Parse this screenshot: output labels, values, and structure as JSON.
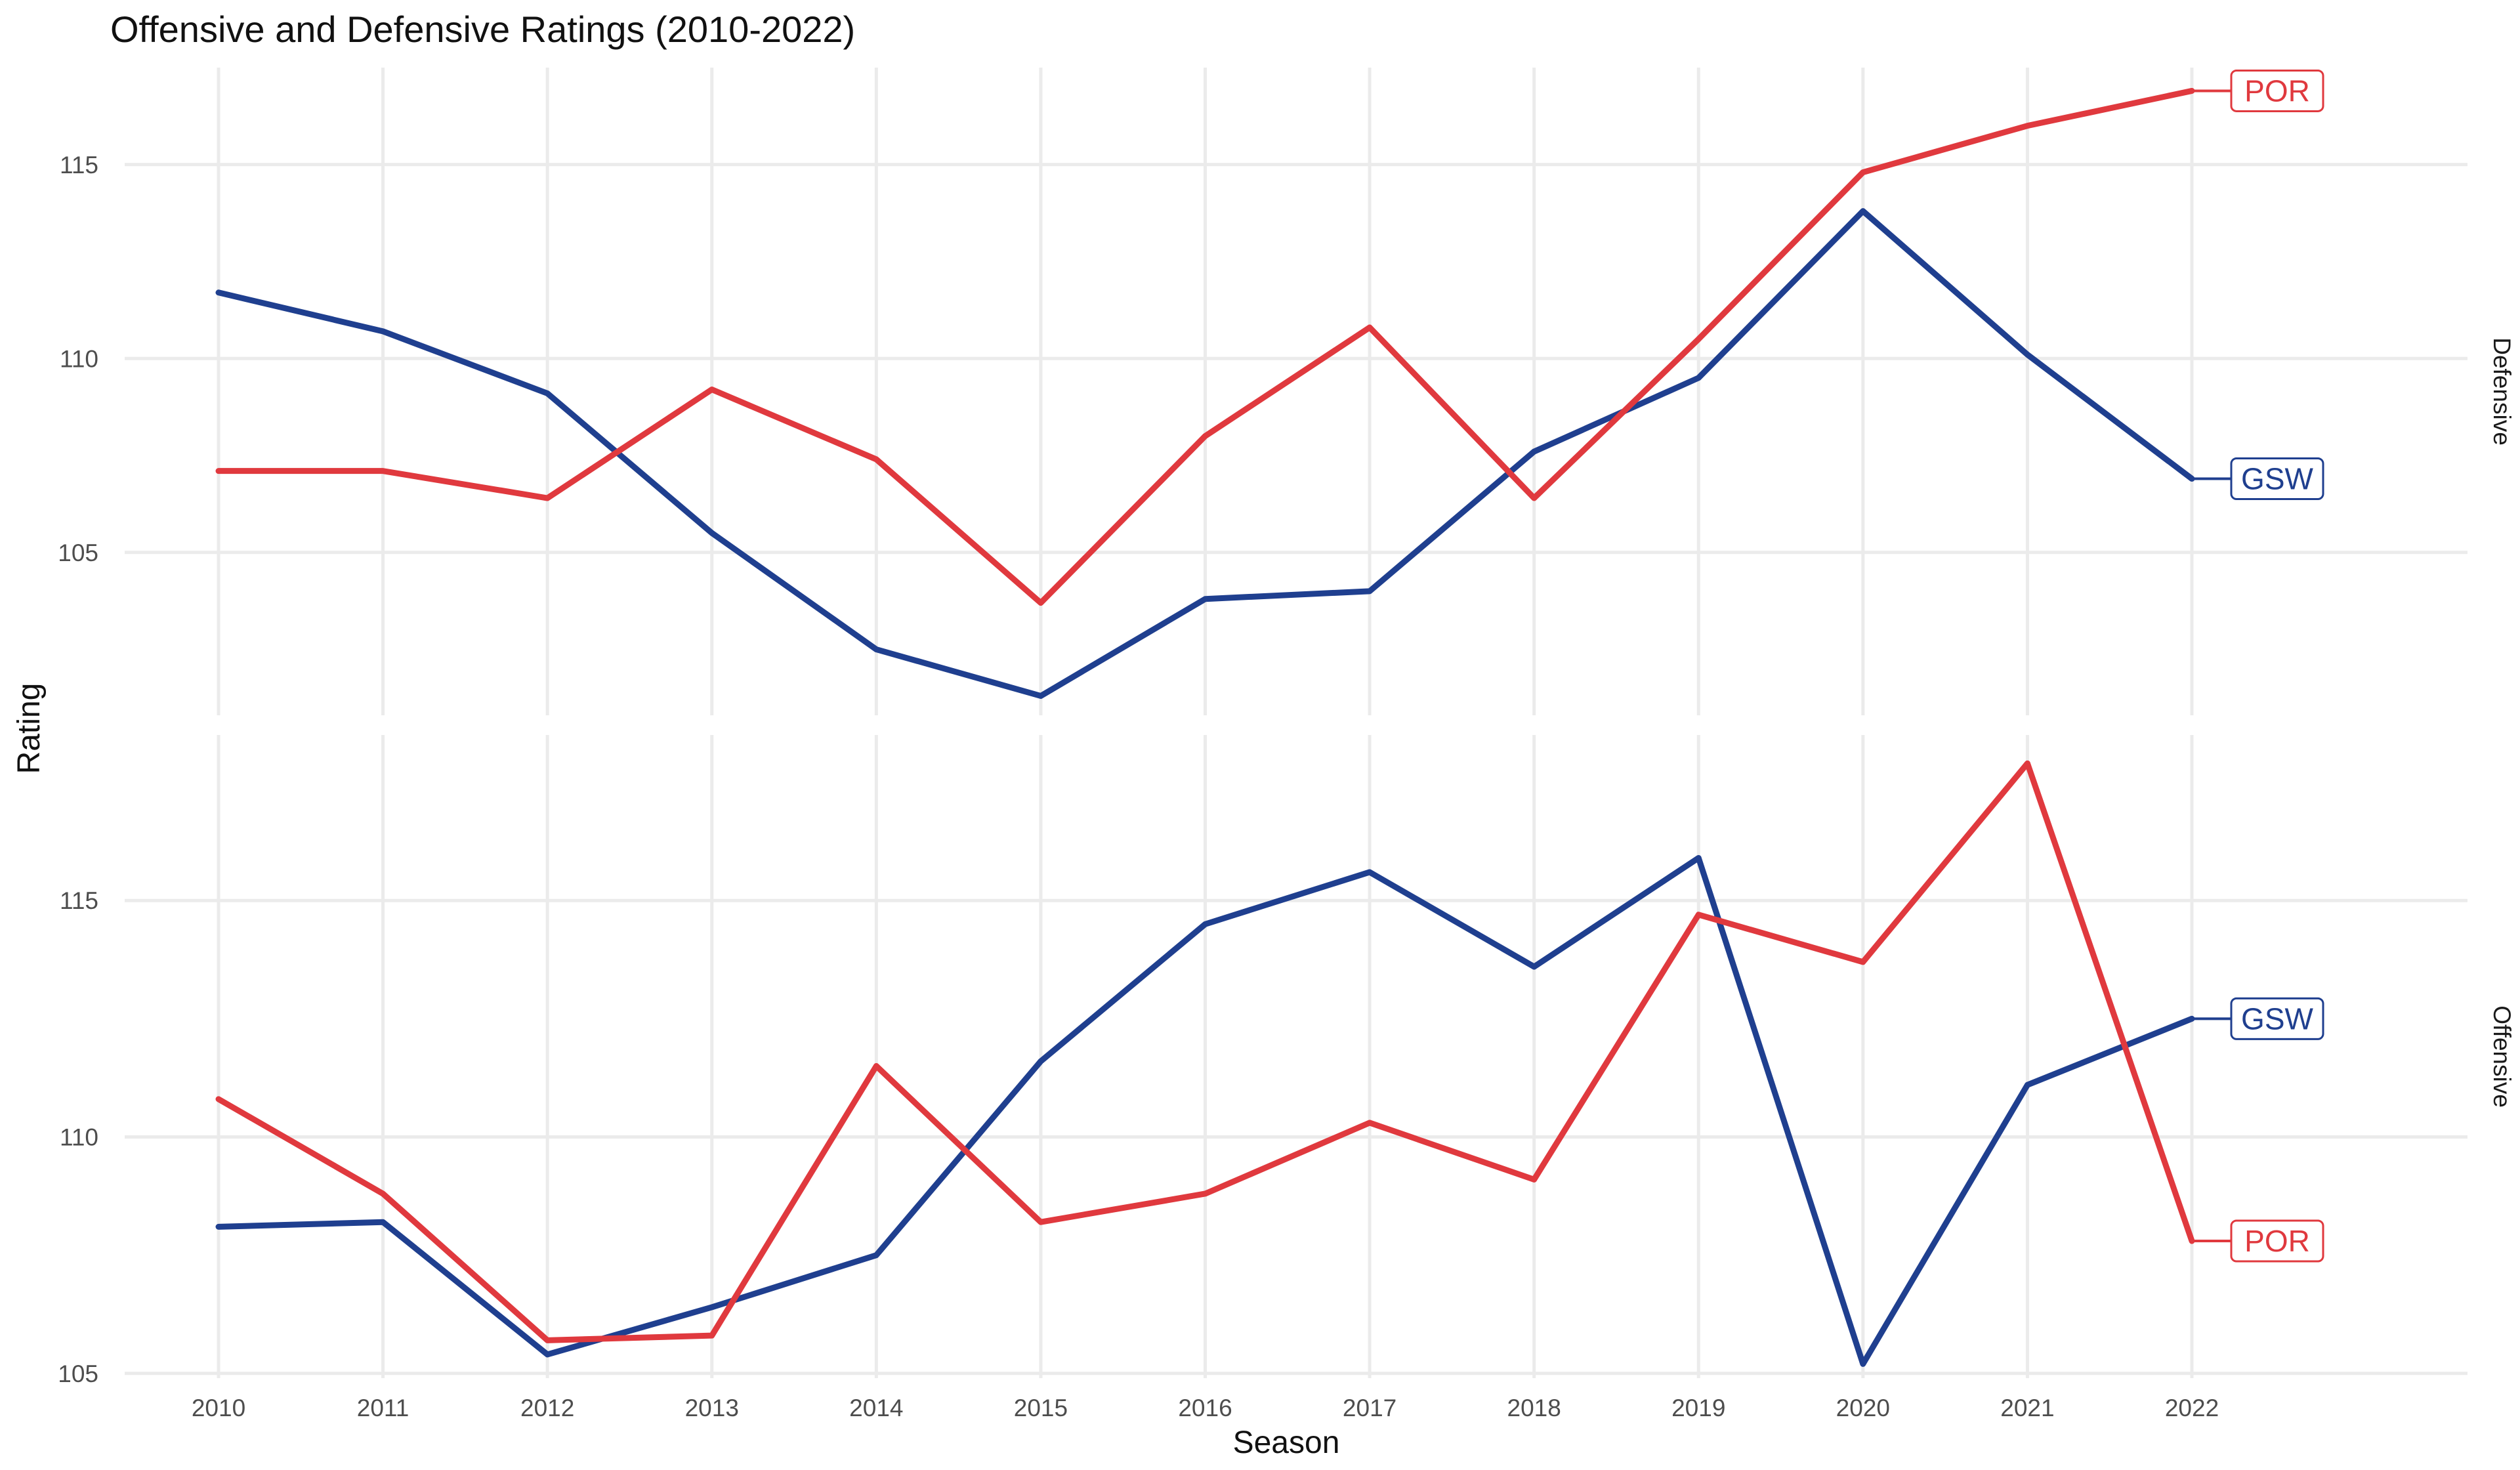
{
  "chart_data": {
    "type": "line",
    "title": "Offensive and Defensive Ratings (2010-2022)",
    "xlabel": "Season",
    "ylabel": "Rating",
    "x": [
      2010,
      2011,
      2012,
      2013,
      2014,
      2015,
      2016,
      2017,
      2018,
      2019,
      2020,
      2021,
      2022
    ],
    "x_ticks": [
      "2010",
      "2011",
      "2012",
      "2013",
      "2014",
      "2015",
      "2016",
      "2017",
      "2018",
      "2019",
      "2020",
      "2021",
      "2022"
    ],
    "grid": true,
    "legend": "none (direct labels at line ends)",
    "colors": {
      "GSW": "#1f3f8f",
      "POR": "#e0393e"
    },
    "panels": [
      {
        "facet": "Defensive",
        "ylim": [
          100.8,
          117.5
        ],
        "y_ticks": [
          105,
          110,
          115
        ],
        "series": [
          {
            "name": "GSW",
            "values": [
              111.7,
              110.7,
              109.1,
              105.5,
              102.5,
              101.3,
              103.8,
              104.0,
              107.6,
              109.5,
              113.8,
              110.1,
              106.9
            ]
          },
          {
            "name": "POR",
            "values": [
              107.1,
              107.1,
              106.4,
              109.2,
              107.4,
              103.7,
              108.0,
              110.8,
              106.4,
              110.5,
              114.8,
              116.0,
              116.9
            ]
          }
        ]
      },
      {
        "facet": "Offensive",
        "ylim": [
          104.9,
          118.5
        ],
        "y_ticks": [
          105,
          110,
          115
        ],
        "series": [
          {
            "name": "GSW",
            "values": [
              108.1,
              108.2,
              105.4,
              106.4,
              107.5,
              111.6,
              114.5,
              115.6,
              113.6,
              115.9,
              105.2,
              111.1,
              112.5
            ]
          },
          {
            "name": "POR",
            "values": [
              110.8,
              108.8,
              105.7,
              105.8,
              111.5,
              108.2,
              108.8,
              110.3,
              109.1,
              114.7,
              113.7,
              117.9,
              107.8
            ]
          }
        ]
      }
    ]
  }
}
